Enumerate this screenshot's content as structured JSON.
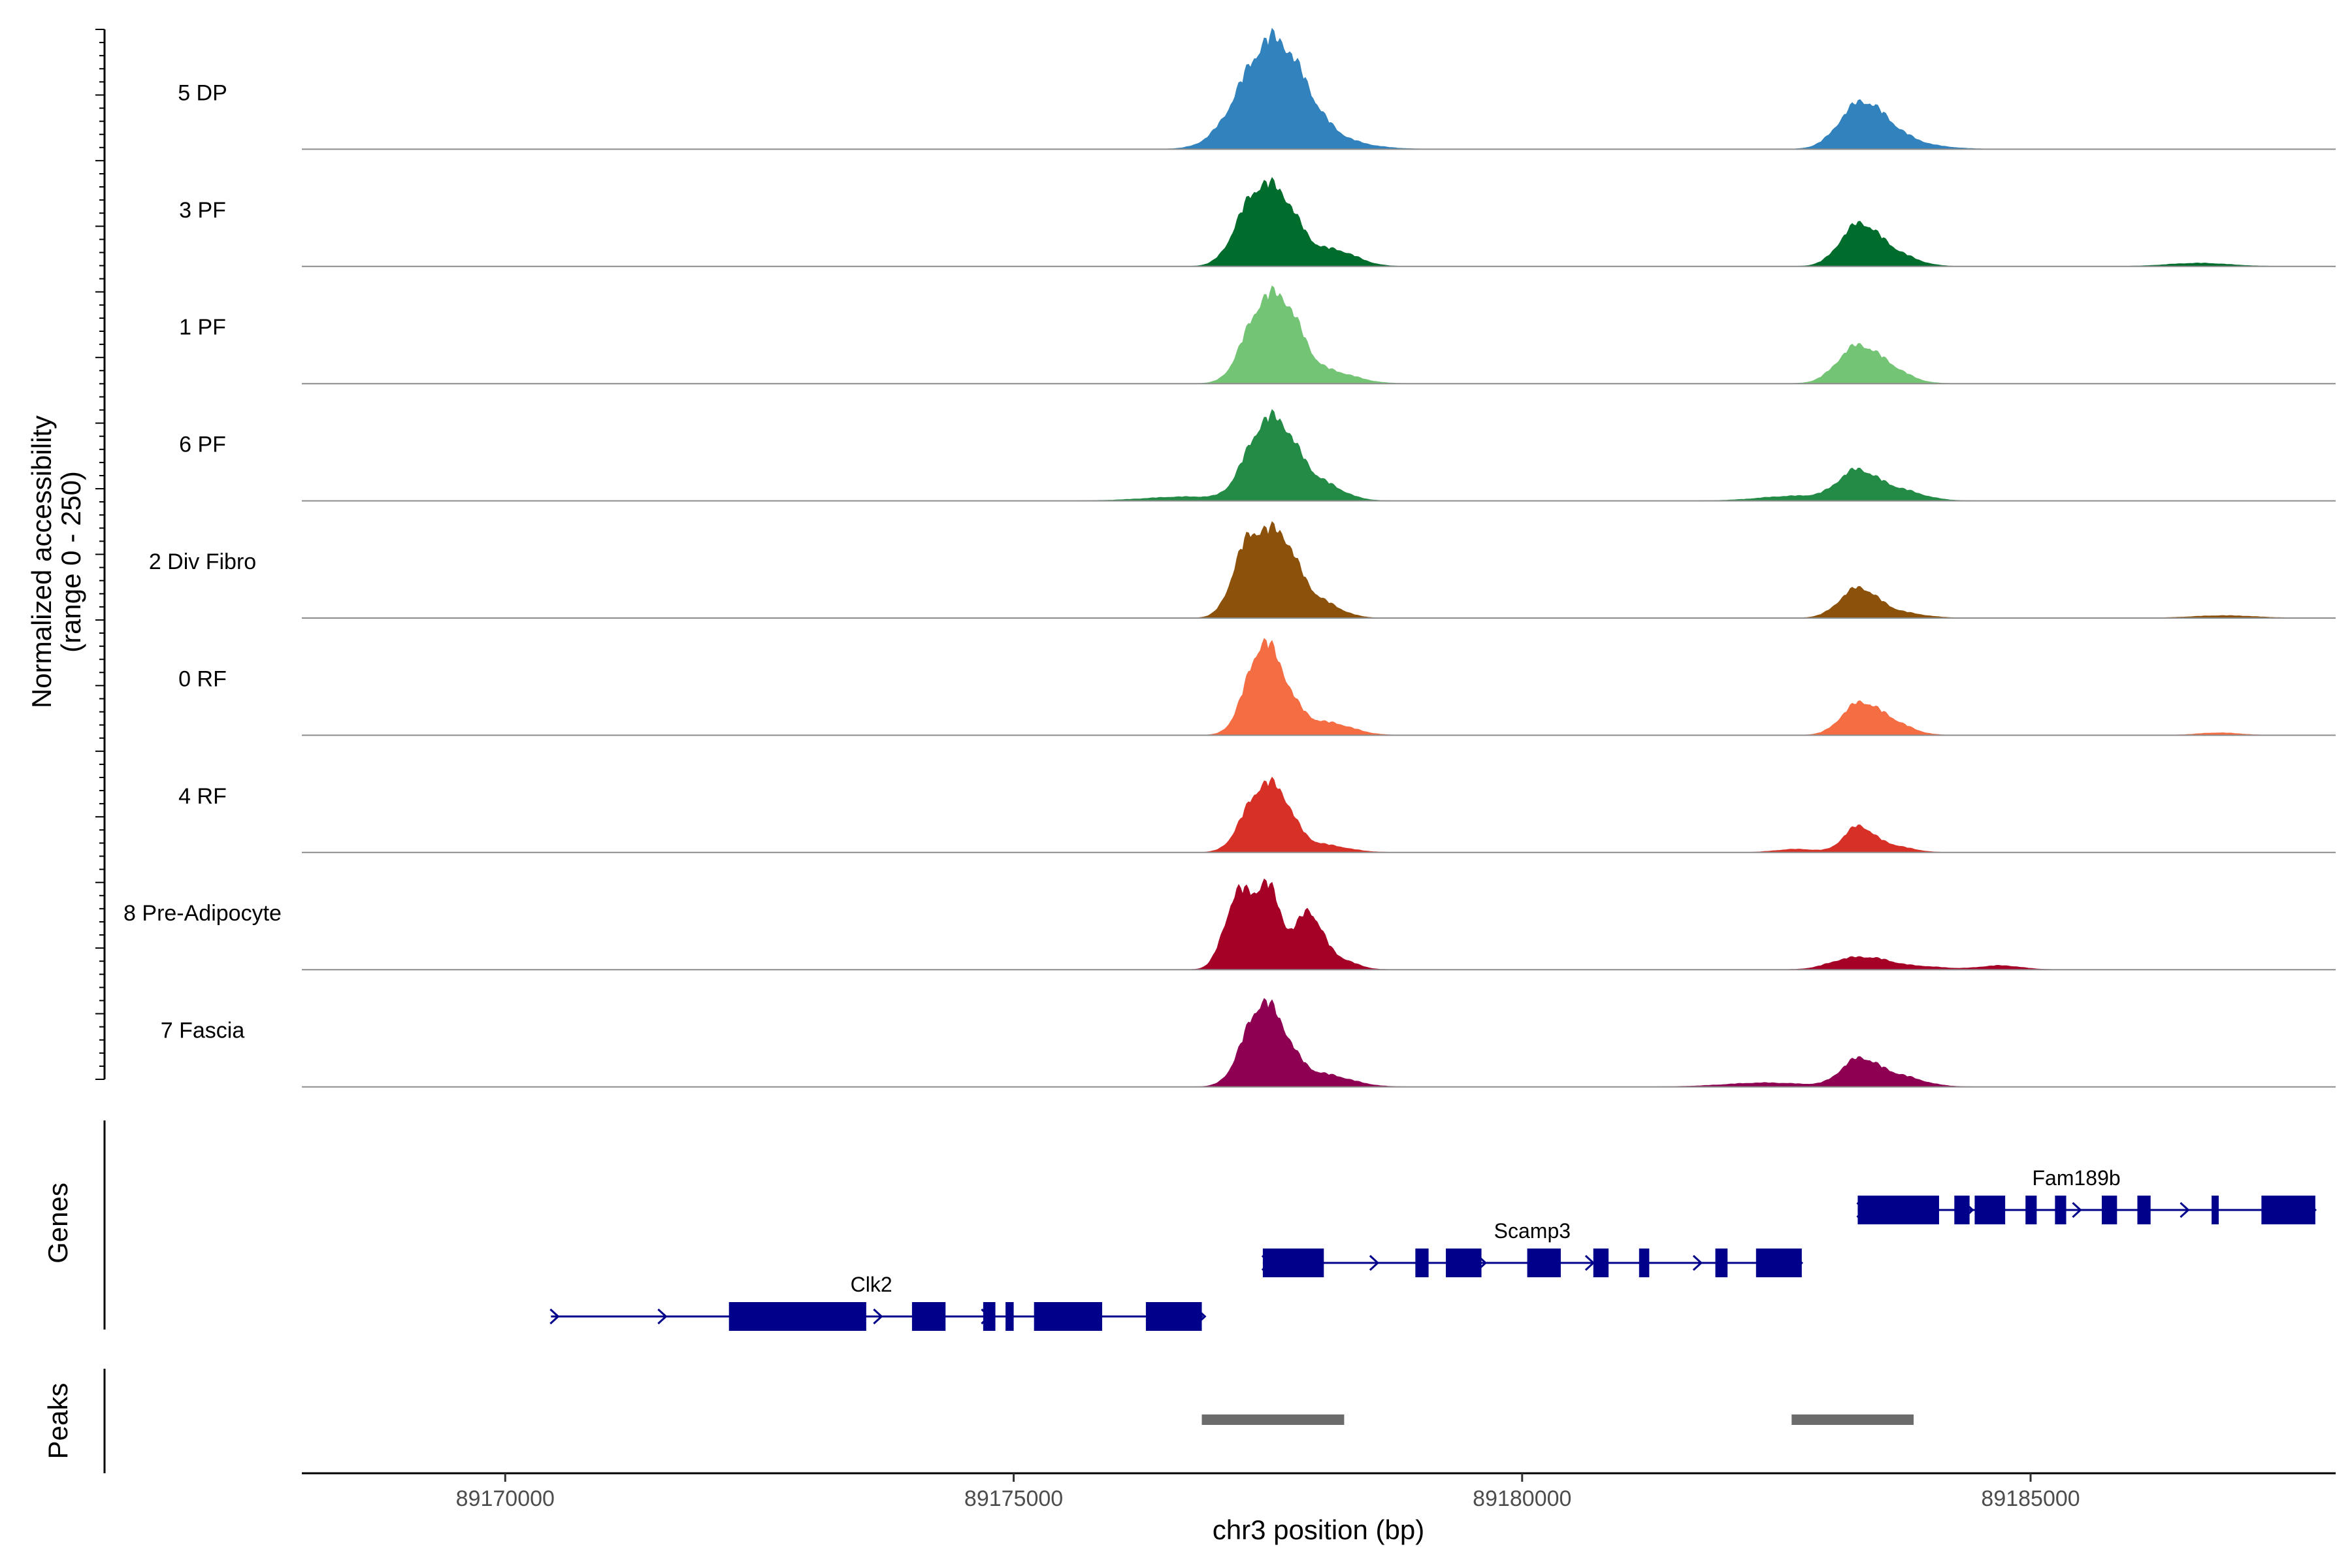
{
  "chart_data": {
    "type": "coverage-track",
    "xlabel": "chr3 position (bp)",
    "ylabel": [
      "Normalized accessibility",
      "(range 0 - 250)"
    ],
    "xlim": [
      89168000,
      89188000
    ],
    "ylim": [
      0,
      250
    ],
    "x_ticks": [
      89170000,
      89175000,
      89180000,
      89185000
    ],
    "x_tick_labels": [
      "89170000",
      "89175000",
      "89180000",
      "89185000"
    ],
    "tracks": [
      {
        "name": "5 DP",
        "color": "#3182BD",
        "peaks": [
          [
            89177450,
            200,
            280
          ],
          [
            89177720,
            100,
            250
          ],
          [
            89178050,
            25,
            350
          ],
          [
            89183300,
            95,
            200
          ],
          [
            89183560,
            40,
            220
          ],
          [
            89183850,
            10,
            300
          ]
        ]
      },
      {
        "name": "3 PF",
        "color": "#006D2C",
        "peaks": [
          [
            89177350,
            150,
            180
          ],
          [
            89177650,
            140,
            180
          ],
          [
            89178150,
            40,
            220
          ],
          [
            89183300,
            95,
            180
          ],
          [
            89183620,
            35,
            220
          ],
          [
            89186650,
            8,
            300
          ]
        ]
      },
      {
        "name": "1 PF",
        "color": "#74C476",
        "peaks": [
          [
            89177400,
            150,
            170
          ],
          [
            89177680,
            160,
            170
          ],
          [
            89178100,
            30,
            250
          ],
          [
            89183280,
            85,
            190
          ],
          [
            89183600,
            35,
            200
          ]
        ]
      },
      {
        "name": "6 PF",
        "color": "#238B45",
        "peaks": [
          [
            89177400,
            130,
            170
          ],
          [
            89177650,
            135,
            170
          ],
          [
            89178000,
            45,
            220
          ],
          [
            89176700,
            10,
            400
          ],
          [
            89183280,
            65,
            180
          ],
          [
            89183650,
            30,
            250
          ],
          [
            89182700,
            12,
            350
          ]
        ]
      },
      {
        "name": "2 Div Fibro",
        "color": "#8C510A",
        "peaks": [
          [
            89177300,
            170,
            150
          ],
          [
            89177620,
            190,
            170
          ],
          [
            89178000,
            40,
            200
          ],
          [
            89183300,
            70,
            180
          ],
          [
            89183650,
            15,
            250
          ],
          [
            89186900,
            6,
            300
          ]
        ]
      },
      {
        "name": "0 RF",
        "color": "#F46D43",
        "peaks": [
          [
            89177430,
            190,
            160
          ],
          [
            89177650,
            80,
            170
          ],
          [
            89178100,
            30,
            230
          ],
          [
            89183300,
            70,
            170
          ],
          [
            89183600,
            35,
            200
          ],
          [
            89186850,
            6,
            200
          ]
        ]
      },
      {
        "name": "4 RF",
        "color": "#D73027",
        "peaks": [
          [
            89177380,
            120,
            160
          ],
          [
            89177620,
            110,
            150
          ],
          [
            89178000,
            20,
            250
          ],
          [
            89183300,
            60,
            140
          ],
          [
            89183600,
            18,
            200
          ],
          [
            89182700,
            8,
            200
          ]
        ]
      },
      {
        "name": "8 Pre-Adipocyte",
        "color": "#A50026",
        "peaks": [
          [
            89177200,
            180,
            130
          ],
          [
            89177500,
            200,
            130
          ],
          [
            89177900,
            140,
            130
          ],
          [
            89178200,
            25,
            160
          ],
          [
            89183200,
            24,
            200
          ],
          [
            89183500,
            18,
            180
          ],
          [
            89184700,
            10,
            200
          ],
          [
            89183900,
            8,
            250
          ]
        ]
      },
      {
        "name": "7 Fascia",
        "color": "#8E0152",
        "peaks": [
          [
            89177400,
            160,
            170
          ],
          [
            89177620,
            90,
            170
          ],
          [
            89178050,
            30,
            260
          ],
          [
            89183300,
            60,
            170
          ],
          [
            89183650,
            30,
            250
          ],
          [
            89182400,
            10,
            400
          ]
        ]
      }
    ],
    "genes_label": "Genes",
    "genes": [
      {
        "name": "Clk2",
        "start": 89170450,
        "end": 89176850,
        "row": 2,
        "label_x": 89173600,
        "exons": [
          [
            89172200,
            89173550
          ],
          [
            89174000,
            89174330
          ],
          [
            89174700,
            89174820
          ],
          [
            89174920,
            89175000
          ],
          [
            89175200,
            89175870
          ],
          [
            89176300,
            89176850
          ]
        ]
      },
      {
        "name": "Scamp3",
        "start": 89177450,
        "end": 89182750,
        "row": 1,
        "label_x": 89180100,
        "exons": [
          [
            89177450,
            89178050
          ],
          [
            89178950,
            89179080
          ],
          [
            89179250,
            89179600
          ],
          [
            89180050,
            89180380
          ],
          [
            89180700,
            89180850
          ],
          [
            89181150,
            89181250
          ],
          [
            89181900,
            89182020
          ],
          [
            89182300,
            89182750
          ]
        ]
      },
      {
        "name": "Fam189b",
        "start": 89183300,
        "end": 89187800,
        "row": 0,
        "label_x": 89185450,
        "exons": [
          [
            89183300,
            89184100
          ],
          [
            89184250,
            89184400
          ],
          [
            89184450,
            89184750
          ],
          [
            89184950,
            89185060
          ],
          [
            89185240,
            89185350
          ],
          [
            89185700,
            89185850
          ],
          [
            89186050,
            89186180
          ],
          [
            89186780,
            89186850
          ],
          [
            89187270,
            89187800
          ]
        ]
      }
    ],
    "peaks_label": "Peaks",
    "peak_regions": [
      [
        89176850,
        89178250
      ],
      [
        89182650,
        89183850
      ]
    ],
    "colors": {
      "gene": "#00008B",
      "peak_region": "#6B6B6B",
      "baseline": "#8C8C8C"
    }
  }
}
